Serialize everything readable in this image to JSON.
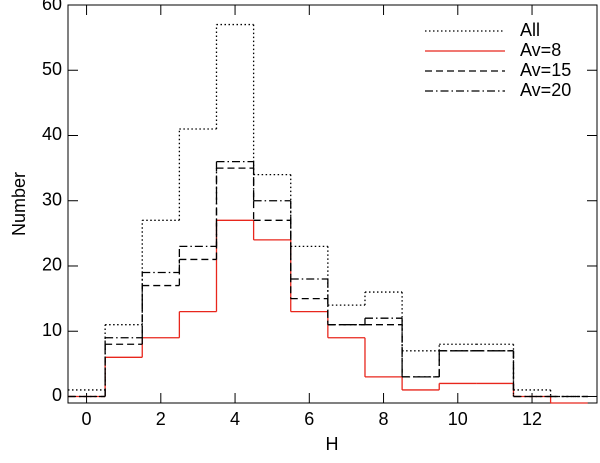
{
  "chart_data": {
    "type": "step-histogram",
    "x_label": "H",
    "y_label": "Number",
    "bins": [
      -0.5,
      0.5,
      1.5,
      2.5,
      3.5,
      4.5,
      5.5,
      6.5,
      7.5,
      8.5,
      9.5,
      10.5,
      11.5,
      12.5,
      13.5
    ],
    "series": [
      {
        "name": "All",
        "color": "#000000",
        "linestyle": "dotted",
        "values": [
          1,
          11,
          27,
          41,
          57,
          34,
          23,
          14,
          16,
          7,
          8,
          8,
          1,
          0
        ]
      },
      {
        "name": "Av=8",
        "color": "#e8261c",
        "linestyle": "solid",
        "values": [
          0,
          6,
          9,
          13,
          27,
          24,
          13,
          9,
          3,
          1,
          2,
          2,
          0,
          -1
        ]
      },
      {
        "name": "Av=15",
        "color": "#000000",
        "linestyle": "dashed",
        "values": [
          0,
          8,
          17,
          21,
          35,
          27,
          15,
          11,
          11,
          3,
          7,
          7,
          0,
          0
        ]
      },
      {
        "name": "Av=20",
        "color": "#000000",
        "linestyle": "dashdot",
        "values": [
          0,
          9,
          19,
          23,
          36,
          30,
          18,
          11,
          12,
          3,
          7,
          7,
          0,
          0
        ]
      }
    ],
    "xlim": [
      -0.5,
      13.75
    ],
    "ylim": [
      -1,
      60
    ],
    "xticks": [
      0,
      2,
      4,
      6,
      8,
      10,
      12
    ],
    "yticks": [
      0,
      10,
      20,
      30,
      40,
      50,
      60
    ],
    "legend": "upper right"
  }
}
